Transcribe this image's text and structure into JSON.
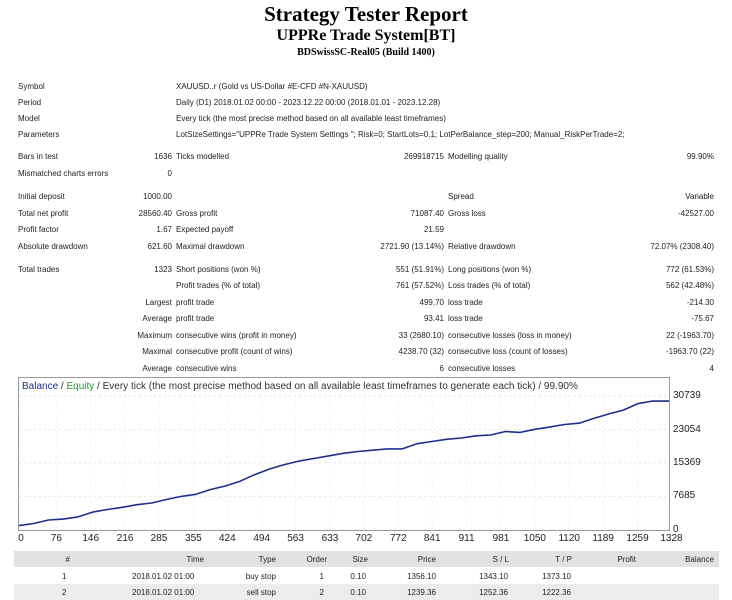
{
  "report": {
    "title": "Strategy Tester Report",
    "subtitle": "UPPRe Trade System[BT]",
    "build": "BDSwissSC-Real05 (Build 1400)"
  },
  "info": {
    "symbol_label": "Symbol",
    "symbol": "XAUUSD..r (Gold vs US-Dollar #E-CFD #N-XAUUSD)",
    "period_label": "Period",
    "period": "Daily (D1) 2018.01.02 00:00 - 2023.12.22 00:00 (2018.01.01 - 2023.12.28)",
    "model_label": "Model",
    "model": "Every tick (the most precise method based on all available least timeframes)",
    "parameters_label": "Parameters",
    "parameters": "LotSizeSettings=\"UPPRe Trade System Settings \"; Risk=0; StartLots=0.1; LotPerBalance_step=200; Manual_RiskPerTrade=2;"
  },
  "stats": {
    "bars_label": "Bars in test",
    "bars": "1636",
    "ticks_label": "Ticks modelled",
    "ticks": "269918715",
    "quality_label": "Modelling quality",
    "quality": "99.90%",
    "mismatch_label": "Mismatched charts errors",
    "mismatch": "0",
    "deposit_label": "Initial deposit",
    "deposit": "1000.00",
    "spread_label": "Spread",
    "spread": "Variable",
    "net_label": "Total net profit",
    "net": "28560.40",
    "gross_profit_label": "Gross profit",
    "gross_profit": "71087.40",
    "gross_loss_label": "Gross loss",
    "gross_loss": "-42527.00",
    "pf_label": "Profit factor",
    "pf": "1.67",
    "payoff_label": "Expected payoff",
    "payoff": "21.59",
    "abs_dd_label": "Absolute drawdown",
    "abs_dd": "621.60",
    "max_dd_label": "Maximal drawdown",
    "max_dd": "2721.90 (13.14%)",
    "rel_dd_label": "Relative drawdown",
    "rel_dd": "72.07% (2308.40)",
    "total_trades_label": "Total trades",
    "total_trades": "1323",
    "short_label": "Short positions (won %)",
    "short": "551 (51.91%)",
    "long_label": "Long positions (won %)",
    "long": "772 (61.53%)",
    "profit_trades_label": "Profit trades (% of total)",
    "profit_trades": "761 (57.52%)",
    "loss_trades_label": "Loss trades (% of total)",
    "loss_trades": "562 (42.48%)",
    "largest_label": "Largest",
    "largest_profit_label": "profit trade",
    "largest_profit": "499.70",
    "largest_loss_label": "loss trade",
    "largest_loss": "-214.30",
    "average_label": "Average",
    "avg_profit_label": "profit trade",
    "avg_profit": "93.41",
    "avg_loss_label": "loss trade",
    "avg_loss": "-75.67",
    "maximum_label": "Maximum",
    "max_cons_wins_label": "consecutive wins (profit in money)",
    "max_cons_wins": "33 (2680.10)",
    "max_cons_losses_label": "consecutive losses (loss in money)",
    "max_cons_losses": "22 (-1963.70)",
    "maximal_label": "Maximal",
    "maximal_cons_profit_label": "consecutive profit (count of wins)",
    "maximal_cons_profit": "4238.70 (32)",
    "maximal_cons_loss_label": "consecutive loss (count of losses)",
    "maximal_cons_loss": "-1963.70 (22)",
    "average2_label": "Average",
    "avg_cons_wins_label": "consecutive wins",
    "avg_cons_wins": "6",
    "avg_cons_losses_label": "consecutive losses",
    "avg_cons_losses": "4"
  },
  "chart_title": {
    "balance": "Balance",
    "sep": " / ",
    "equity": "Equity",
    "rest": " / Every tick (the most precise method based on all available least timeframes to generate each tick) / 99.90%"
  },
  "chart_data": {
    "type": "line",
    "title": "Balance / Equity / Every tick (the most precise method based on all available least timeframes to generate each tick) / 99.90%",
    "xlim": [
      0,
      1323
    ],
    "ylim": [
      0,
      30739
    ],
    "y_ticks": [
      "30739",
      "23054",
      "15369",
      "7685",
      "0"
    ],
    "x_ticks": [
      "0",
      "76",
      "146",
      "216",
      "285",
      "355",
      "424",
      "494",
      "563",
      "633",
      "702",
      "772",
      "841",
      "911",
      "981",
      "1050",
      "1120",
      "1189",
      "1259",
      "1328"
    ],
    "grid": true,
    "series": [
      {
        "name": "Balance",
        "color": "#1e2f8a",
        "x": [
          0,
          30,
          60,
          90,
          120,
          150,
          180,
          210,
          240,
          270,
          300,
          330,
          360,
          390,
          420,
          450,
          480,
          510,
          540,
          570,
          600,
          630,
          660,
          690,
          720,
          750,
          780,
          810,
          840,
          870,
          900,
          930,
          960,
          990,
          1020,
          1050,
          1080,
          1110,
          1140,
          1170,
          1200,
          1230,
          1260,
          1290,
          1323
        ],
        "values": [
          1000,
          1500,
          2300,
          2500,
          3000,
          4100,
          4700,
          5200,
          5800,
          6200,
          7000,
          7700,
          8200,
          9300,
          10100,
          11200,
          12700,
          14000,
          15000,
          15800,
          16400,
          17000,
          17600,
          18000,
          18300,
          18600,
          18600,
          19800,
          20300,
          20800,
          21100,
          21600,
          21800,
          22600,
          22400,
          23100,
          23600,
          24200,
          24500,
          25600,
          26600,
          27500,
          29000,
          29600,
          29560
        ]
      }
    ]
  },
  "deals": {
    "headers": [
      "#",
      "Time",
      "Type",
      "Order",
      "Size",
      "Price",
      "S / L",
      "T / P",
      "Profit",
      "Balance"
    ],
    "rows": [
      [
        "1",
        "2018.01.02 01:00",
        "buy stop",
        "1",
        "0.10",
        "1356.10",
        "1343.10",
        "1373.10",
        "",
        ""
      ],
      [
        "2",
        "2018.01.02 01:00",
        "sell stop",
        "2",
        "0.10",
        "1239.36",
        "1252.36",
        "1222.36",
        "",
        ""
      ]
    ]
  }
}
